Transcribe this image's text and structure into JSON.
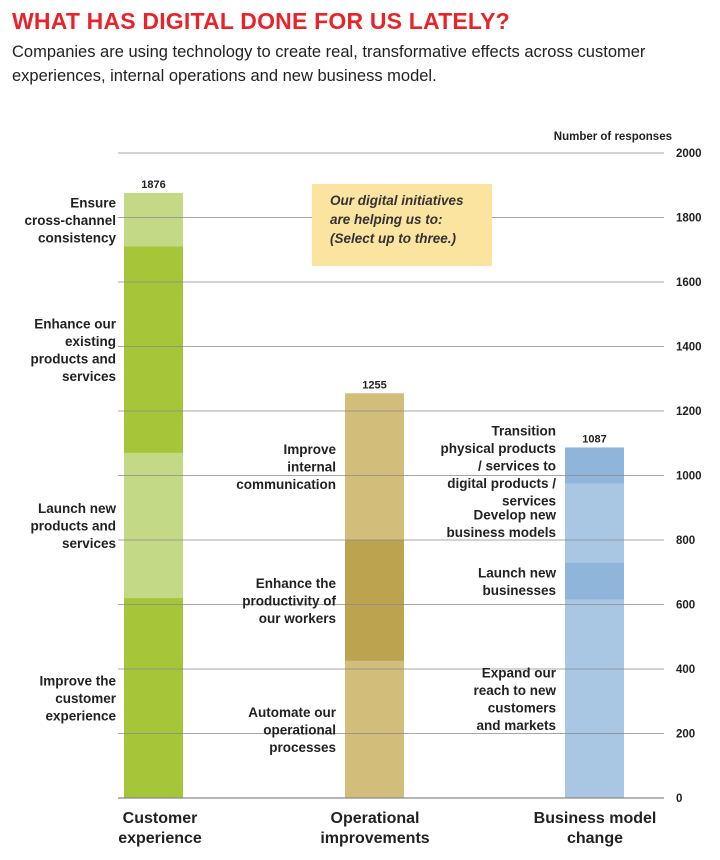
{
  "header": {
    "title": "WHAT HAS DIGITAL DONE FOR US LATELY?",
    "subtitle": "Companies are using technology to create real, transformative effects across customer experiences, internal operations and new business model."
  },
  "note": {
    "lines": [
      "Our digital initiatives",
      "are helping us to:",
      "(Select up to three.)"
    ]
  },
  "chart_data": {
    "type": "bar",
    "stacked": true,
    "ylabel": "Number of responses",
    "ylim": [
      0,
      2000
    ],
    "yticks": [
      0,
      200,
      400,
      600,
      800,
      1000,
      1200,
      1400,
      1600,
      1800,
      2000
    ],
    "grid": true,
    "bars": [
      {
        "category": "Customer experience",
        "category_lines": [
          "Customer",
          "experience"
        ],
        "total": 1876,
        "colors": [
          "#a4c638",
          "#c3d986"
        ],
        "segments": [
          {
            "label": "Improve the customer experience",
            "label_lines": [
              "Improve the",
              "customer",
              "experience"
            ],
            "value": 620
          },
          {
            "label": "Launch new products and services",
            "label_lines": [
              "Launch new",
              "products and",
              "services"
            ],
            "value": 450
          },
          {
            "label": "Enhance our existing products and services",
            "label_lines": [
              "Enhance our",
              "existing",
              "products and",
              "services"
            ],
            "value": 640
          },
          {
            "label": "Ensure cross-channel consistency",
            "label_lines": [
              "Ensure",
              "cross-channel",
              "consistency"
            ],
            "value": 166
          }
        ]
      },
      {
        "category": "Operational improvements",
        "category_lines": [
          "Operational",
          "improvements"
        ],
        "total": 1255,
        "colors": [
          "#d3bd7b",
          "#bba34f"
        ],
        "segments": [
          {
            "label": "Automate our operational processes",
            "label_lines": [
              "Automate our",
              "operational",
              "processes"
            ],
            "value": 425
          },
          {
            "label": "Enhance the productivity of our workers",
            "label_lines": [
              "Enhance the",
              "productivity of",
              "our workers"
            ],
            "value": 375
          },
          {
            "label": "Improve internal communication",
            "label_lines": [
              "Improve",
              "internal",
              "communication"
            ],
            "value": 455
          }
        ]
      },
      {
        "category": "Business model change",
        "category_lines": [
          "Business model",
          "change"
        ],
        "total": 1087,
        "colors": [
          "#a9c6e3",
          "#8fb5da"
        ],
        "segments": [
          {
            "label": "Expand our reach to new customers and markets",
            "label_lines": [
              "Expand our",
              "reach to new",
              "customers",
              "and markets"
            ],
            "value": 615
          },
          {
            "label": "Launch new businesses",
            "label_lines": [
              "Launch new",
              "businesses"
            ],
            "value": 115
          },
          {
            "label": "Develop new business models",
            "label_lines": [
              "Develop new",
              "business models"
            ],
            "value": 245
          },
          {
            "label": "Transition physical products / services to digital products / services",
            "label_lines": [
              "Transition",
              "physical products",
              "/ services to",
              "digital products /",
              "services"
            ],
            "value": 112
          }
        ]
      }
    ]
  }
}
